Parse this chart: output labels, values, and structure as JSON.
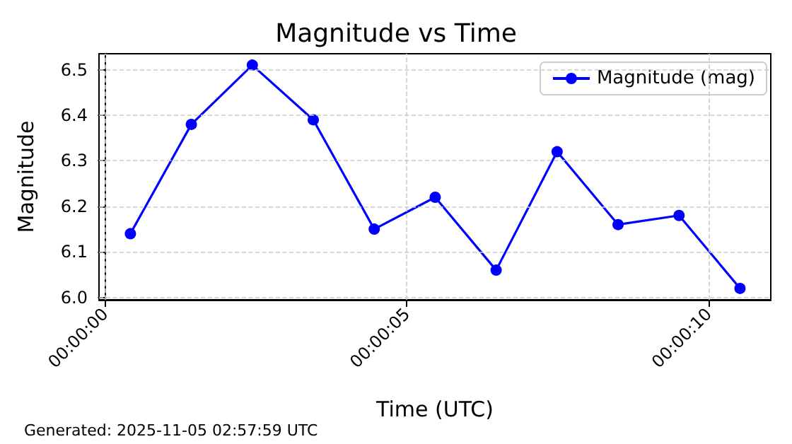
{
  "chart_data": {
    "type": "line",
    "title": "Magnitude vs Time",
    "xlabel": "Time (UTC)",
    "ylabel": "Magnitude",
    "annotations": [
      "Generated: 2025-11-05 02:57:59 UTC"
    ],
    "x": [
      0.42,
      1.43,
      2.44,
      3.45,
      4.46,
      5.47,
      6.48,
      7.49,
      8.5,
      9.51,
      10.52
    ],
    "series": [
      {
        "name": "Magnitude (mag)",
        "color": "#0000ff",
        "values": [
          6.14,
          6.38,
          6.51,
          6.39,
          6.15,
          6.22,
          6.06,
          6.32,
          6.16,
          6.18,
          6.02
        ]
      }
    ],
    "xlim": [
      -0.1,
      11.03
    ],
    "xticks": [
      {
        "value": 0,
        "label": "00:00:00"
      },
      {
        "value": 5,
        "label": "00:00:05"
      },
      {
        "value": 10,
        "label": "00:00:10"
      }
    ],
    "ylim": [
      5.995,
      6.535
    ],
    "yticks": [
      {
        "value": 6,
        "label": "6.0"
      },
      6.1,
      6.2,
      6.3,
      6.4,
      6.5
    ],
    "grid": true,
    "legend": "top right",
    "marker": "circle",
    "line_style": "solid"
  }
}
